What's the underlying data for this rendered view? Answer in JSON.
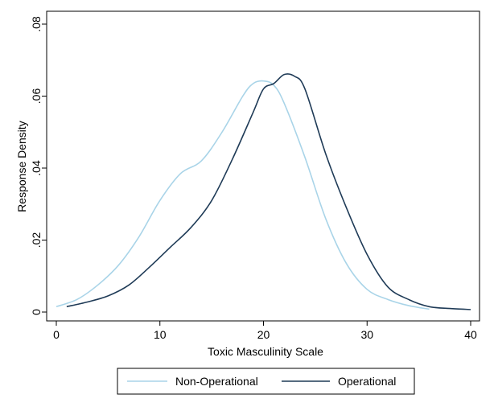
{
  "chart_data": {
    "type": "line",
    "xlabel": "Toxic Masculinity Scale",
    "ylabel": "Response Density",
    "xlim": [
      0,
      40
    ],
    "ylim": [
      0,
      0.08
    ],
    "x_ticks": [
      0,
      10,
      20,
      30,
      40
    ],
    "x_tick_labels": [
      "0",
      "10",
      "20",
      "30",
      "40"
    ],
    "y_ticks": [
      0,
      0.02,
      0.04,
      0.06,
      0.08
    ],
    "y_tick_labels": [
      "0",
      ".02",
      ".04",
      ".06",
      ".08"
    ],
    "grid": false,
    "legend_position": "bottom",
    "series": [
      {
        "name": "Non-Operational",
        "color": "#a9d4e8",
        "x": [
          0,
          2,
          4,
          6,
          8,
          10,
          12,
          14,
          16,
          18,
          19,
          20,
          21,
          22,
          24,
          26,
          28,
          30,
          32,
          34,
          36
        ],
        "y": [
          0.0015,
          0.0035,
          0.0075,
          0.013,
          0.021,
          0.031,
          0.0385,
          0.042,
          0.05,
          0.06,
          0.0635,
          0.0642,
          0.063,
          0.058,
          0.043,
          0.026,
          0.0135,
          0.0063,
          0.0035,
          0.0018,
          0.0008
        ]
      },
      {
        "name": "Operational",
        "color": "#1f3b57",
        "x": [
          1,
          3,
          5,
          7,
          9,
          11,
          13,
          15,
          17,
          19,
          20,
          21,
          22,
          23,
          24,
          26,
          28,
          30,
          32,
          34,
          36,
          38,
          40
        ],
        "y": [
          0.0015,
          0.0028,
          0.0045,
          0.0075,
          0.0125,
          0.018,
          0.0235,
          0.031,
          0.0425,
          0.0555,
          0.062,
          0.0635,
          0.066,
          0.0655,
          0.062,
          0.044,
          0.029,
          0.016,
          0.007,
          0.0035,
          0.0015,
          0.001,
          0.0007
        ]
      }
    ]
  }
}
